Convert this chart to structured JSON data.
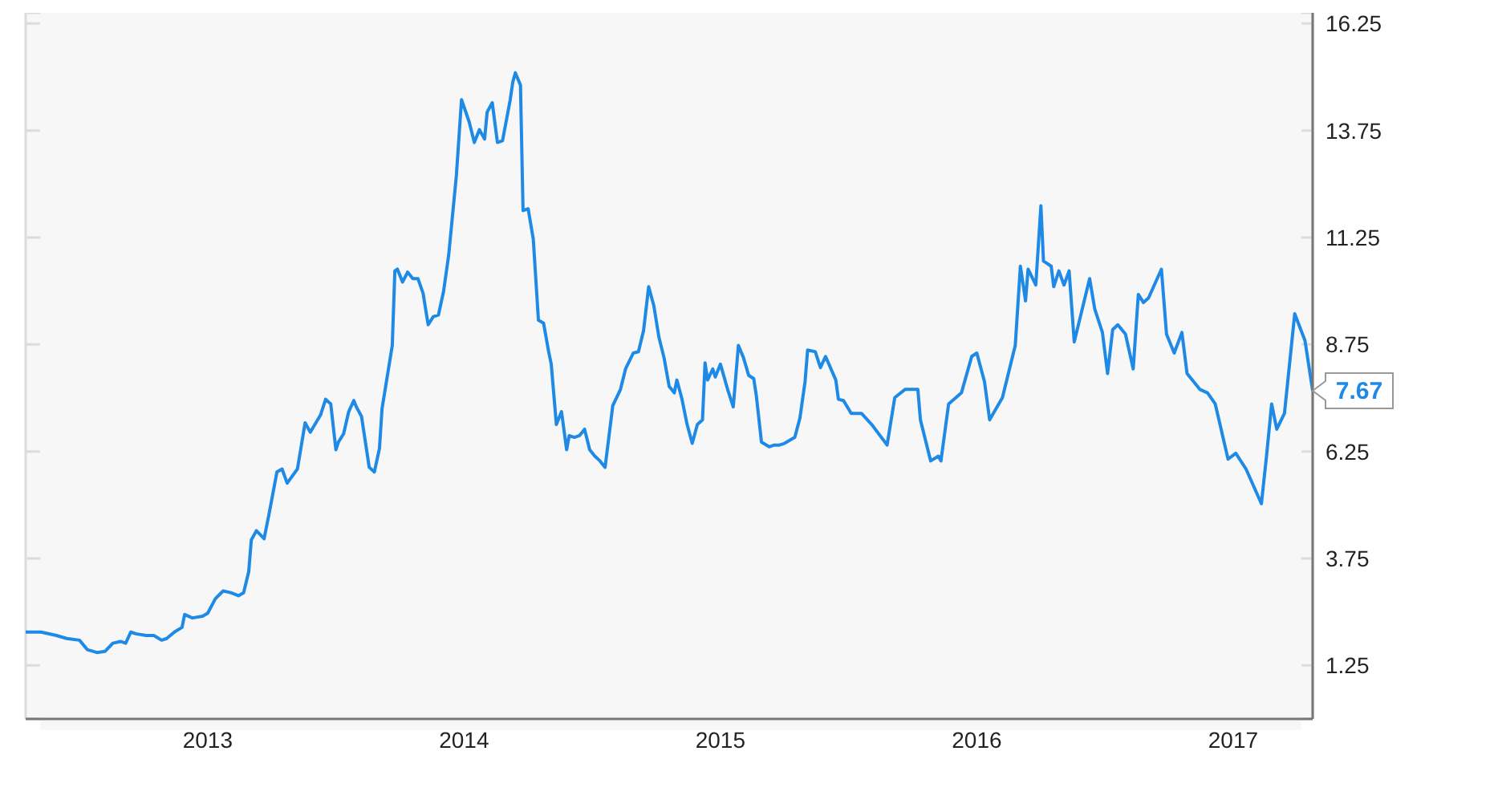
{
  "chart_data": {
    "type": "line",
    "x": [
      2012.29,
      2012.35,
      2012.41,
      2012.45,
      2012.5,
      2012.53,
      2012.57,
      2012.6,
      2012.63,
      2012.66,
      2012.68,
      2012.7,
      2012.72,
      2012.76,
      2012.79,
      2012.82,
      2012.84,
      2012.87,
      2012.9,
      2012.91,
      2012.94,
      2012.98,
      2013.0,
      2013.03,
      2013.06,
      2013.09,
      2013.12,
      2013.14,
      2013.16,
      2013.17,
      2013.19,
      2013.22,
      2013.24,
      2013.27,
      2013.29,
      2013.31,
      2013.35,
      2013.38,
      2013.4,
      2013.44,
      2013.46,
      2013.48,
      2013.5,
      2013.51,
      2013.53,
      2013.55,
      2013.57,
      2013.58,
      2013.6,
      2013.63,
      2013.65,
      2013.67,
      2013.68,
      2013.72,
      2013.73,
      2013.74,
      2013.76,
      2013.78,
      2013.8,
      2013.82,
      2013.84,
      2013.86,
      2013.88,
      2013.9,
      2013.92,
      2013.94,
      2013.97,
      2013.99,
      2014.02,
      2014.04,
      2014.06,
      2014.08,
      2014.09,
      2014.11,
      2014.13,
      2014.15,
      2014.18,
      2014.19,
      2014.2,
      2014.22,
      2014.23,
      2014.25,
      2014.27,
      2014.29,
      2014.31,
      2014.33,
      2014.34,
      2014.36,
      2014.38,
      2014.4,
      2014.41,
      2014.43,
      2014.45,
      2014.47,
      2014.49,
      2014.51,
      2014.53,
      2014.55,
      2014.58,
      2014.61,
      2014.63,
      2014.66,
      2014.68,
      2014.7,
      2014.72,
      2014.74,
      2014.76,
      2014.78,
      2014.8,
      2014.82,
      2014.83,
      2014.85,
      2014.87,
      2014.89,
      2014.91,
      2014.93,
      2014.94,
      2014.95,
      2014.97,
      2014.98,
      2015.0,
      2015.03,
      2015.05,
      2015.07,
      2015.09,
      2015.11,
      2015.13,
      2015.14,
      2015.16,
      2015.19,
      2015.21,
      2015.23,
      2015.25,
      2015.29,
      2015.31,
      2015.33,
      2015.34,
      2015.37,
      2015.39,
      2015.41,
      2015.45,
      2015.46,
      2015.48,
      2015.51,
      2015.55,
      2015.59,
      2015.65,
      2015.68,
      2015.72,
      2015.77,
      2015.78,
      2015.82,
      2015.85,
      2015.86,
      2015.89,
      2015.94,
      2015.98,
      2016.0,
      2016.03,
      2016.05,
      2016.1,
      2016.15,
      2016.17,
      2016.19,
      2016.2,
      2016.23,
      2016.25,
      2016.26,
      2016.29,
      2016.3,
      2016.32,
      2016.34,
      2016.36,
      2016.38,
      2016.44,
      2016.46,
      2016.49,
      2016.51,
      2016.53,
      2016.55,
      2016.58,
      2016.61,
      2016.63,
      2016.65,
      2016.67,
      2016.72,
      2016.74,
      2016.77,
      2016.8,
      2016.82,
      2016.87,
      2016.9,
      2016.93,
      2016.98,
      2017.01,
      2017.05,
      2017.11,
      2017.13,
      2017.15,
      2017.17,
      2017.2,
      2017.24,
      2017.28,
      2017.31
    ],
    "series": [
      {
        "color": "#1e8ae6",
        "values": [
          2.03,
          2.03,
          1.95,
          1.88,
          1.84,
          1.62,
          1.55,
          1.58,
          1.77,
          1.81,
          1.77,
          2.03,
          1.99,
          1.95,
          1.95,
          1.84,
          1.88,
          2.03,
          2.14,
          2.44,
          2.36,
          2.4,
          2.47,
          2.81,
          2.99,
          2.95,
          2.88,
          2.95,
          3.44,
          4.18,
          4.4,
          4.21,
          4.81,
          5.77,
          5.84,
          5.51,
          5.84,
          6.92,
          6.7,
          7.1,
          7.47,
          7.36,
          6.29,
          6.47,
          6.66,
          7.18,
          7.44,
          7.29,
          7.07,
          5.88,
          5.77,
          6.32,
          7.25,
          8.73,
          10.47,
          10.51,
          10.21,
          10.44,
          10.29,
          10.29,
          9.95,
          9.21,
          9.4,
          9.44,
          9.99,
          10.84,
          12.7,
          14.47,
          13.95,
          13.47,
          13.77,
          13.55,
          14.18,
          14.4,
          13.47,
          13.51,
          14.47,
          14.88,
          15.1,
          14.81,
          11.88,
          11.92,
          11.21,
          9.32,
          9.25,
          8.58,
          8.29,
          6.88,
          7.18,
          6.29,
          6.62,
          6.58,
          6.62,
          6.77,
          6.29,
          6.14,
          6.03,
          5.88,
          7.32,
          7.7,
          8.18,
          8.55,
          8.58,
          9.07,
          10.1,
          9.66,
          8.92,
          8.44,
          7.77,
          7.62,
          7.92,
          7.47,
          6.88,
          6.44,
          6.88,
          6.99,
          8.32,
          7.92,
          8.18,
          7.99,
          8.29,
          7.66,
          7.29,
          8.73,
          8.44,
          8.03,
          7.95,
          7.55,
          6.47,
          6.36,
          6.4,
          6.4,
          6.44,
          6.58,
          7.03,
          7.88,
          8.62,
          8.58,
          8.21,
          8.47,
          7.92,
          7.47,
          7.44,
          7.14,
          7.14,
          6.88,
          6.4,
          7.51,
          7.7,
          7.7,
          6.99,
          6.03,
          6.14,
          6.03,
          7.36,
          7.62,
          8.47,
          8.55,
          7.88,
          6.99,
          7.51,
          8.73,
          10.58,
          9.77,
          10.51,
          10.14,
          11.99,
          10.7,
          10.58,
          10.1,
          10.47,
          10.14,
          10.47,
          8.81,
          10.29,
          9.58,
          9.03,
          8.07,
          9.1,
          9.21,
          8.99,
          8.18,
          9.92,
          9.73,
          9.84,
          10.51,
          8.99,
          8.55,
          9.03,
          8.07,
          7.7,
          7.62,
          7.36,
          6.07,
          6.21,
          5.84,
          5.03,
          6.14,
          7.36,
          6.77,
          7.14,
          9.47,
          8.84,
          7.67
        ],
        "value_labels": [
          null,
          null,
          null,
          null,
          null,
          null,
          null,
          null,
          null,
          null,
          null,
          null,
          null,
          null,
          null,
          null,
          null,
          null,
          null,
          null,
          null,
          null,
          null,
          null,
          null,
          null,
          null,
          null,
          null,
          null,
          null,
          null,
          null,
          null,
          null,
          null,
          null,
          null,
          null,
          null,
          null,
          null,
          null,
          null,
          null,
          null,
          null,
          null,
          null,
          null,
          null,
          null,
          null,
          null,
          null,
          null,
          null,
          null,
          null,
          null,
          null,
          null,
          null,
          null,
          null,
          null,
          null,
          null,
          null,
          null,
          null,
          null,
          null,
          null,
          null,
          null,
          null,
          null,
          null,
          null,
          null,
          null,
          null,
          null,
          null,
          null,
          null,
          null,
          null,
          null,
          null,
          null,
          null,
          null,
          null,
          null,
          null,
          null,
          null,
          null,
          null,
          null,
          null,
          null,
          null,
          null,
          null,
          null,
          null,
          null,
          null,
          null,
          null,
          null,
          null,
          null,
          null,
          null,
          null,
          null,
          null,
          null,
          null,
          null,
          null,
          null,
          null,
          null,
          null,
          null,
          null,
          null,
          null,
          null,
          null,
          null,
          null,
          null,
          null,
          null,
          null,
          null,
          null,
          null,
          null,
          null,
          null,
          null,
          null,
          null,
          null,
          null,
          null,
          null,
          null,
          null,
          null,
          null,
          null,
          null,
          null,
          null,
          null,
          null,
          null,
          null,
          null,
          null,
          null,
          null,
          null,
          null,
          null,
          null,
          null,
          null,
          null,
          null,
          null,
          null,
          null,
          null,
          null,
          null,
          null,
          null,
          null,
          null,
          null,
          null,
          null,
          null,
          null,
          null,
          null,
          null,
          null,
          null,
          null,
          null,
          null,
          null,
          null,
          "7.67"
        ]
      }
    ],
    "xlim": [
      2012.29,
      2017.31
    ],
    "xticks": [
      2013,
      2014,
      2015,
      2016,
      2017
    ],
    "ylim": [
      0,
      16.5
    ],
    "yticks": [
      1.25,
      3.75,
      6.25,
      8.75,
      11.25,
      13.75,
      16.25
    ],
    "grid": true,
    "marker": "none",
    "line_style": "solid"
  }
}
